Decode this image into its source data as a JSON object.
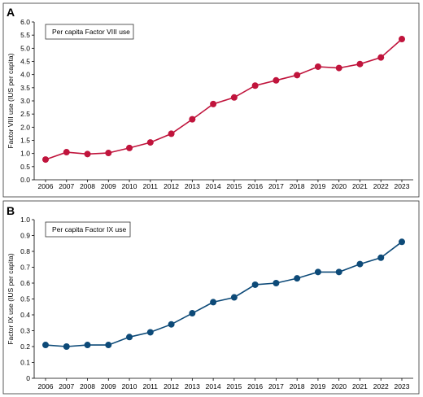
{
  "chart_data": [
    {
      "type": "line",
      "panel": "A",
      "legend": "Per capita Factor VIII use",
      "ylabel": "Factor VIII use (IUS per capita)",
      "xlabel": "",
      "ylim": [
        0,
        6
      ],
      "yticks": [
        "0.0",
        "0.5",
        "1.0",
        "1.5",
        "2.0",
        "2.5",
        "3.0",
        "3.5",
        "4.0",
        "4.5",
        "5.0",
        "5.5",
        "6.0"
      ],
      "categories": [
        "2006",
        "2007",
        "2008",
        "2009",
        "2010",
        "2011",
        "2012",
        "2013",
        "2014",
        "2015",
        "2016",
        "2017",
        "2018",
        "2019",
        "2020",
        "2021",
        "2022",
        "2023"
      ],
      "values": [
        0.77,
        1.05,
        0.98,
        1.02,
        1.21,
        1.42,
        1.75,
        2.3,
        2.88,
        3.13,
        3.58,
        3.78,
        3.98,
        4.3,
        4.25,
        4.4,
        4.65,
        5.35
      ],
      "color": "#c0143c",
      "legend_placement": "top-left",
      "grid": false
    },
    {
      "type": "line",
      "panel": "B",
      "legend": "Per capita Factor IX use",
      "ylabel": "Factor IX use (IUS per capita)",
      "xlabel": "",
      "ylim": [
        0,
        1.0
      ],
      "yticks": [
        "0",
        "0.1",
        "0.2",
        "0.3",
        "0.4",
        "0.5",
        "0.6",
        "0.7",
        "0.8",
        "0.9",
        "1.0"
      ],
      "categories": [
        "2006",
        "2007",
        "2008",
        "2009",
        "2010",
        "2011",
        "2012",
        "2013",
        "2014",
        "2015",
        "2016",
        "2017",
        "2018",
        "2019",
        "2020",
        "2021",
        "2022",
        "2023"
      ],
      "values": [
        0.21,
        0.2,
        0.21,
        0.21,
        0.26,
        0.29,
        0.34,
        0.41,
        0.48,
        0.51,
        0.59,
        0.6,
        0.63,
        0.67,
        0.67,
        0.72,
        0.76,
        0.86
      ],
      "color": "#0d4a78",
      "legend_placement": "top-left",
      "grid": false
    }
  ]
}
